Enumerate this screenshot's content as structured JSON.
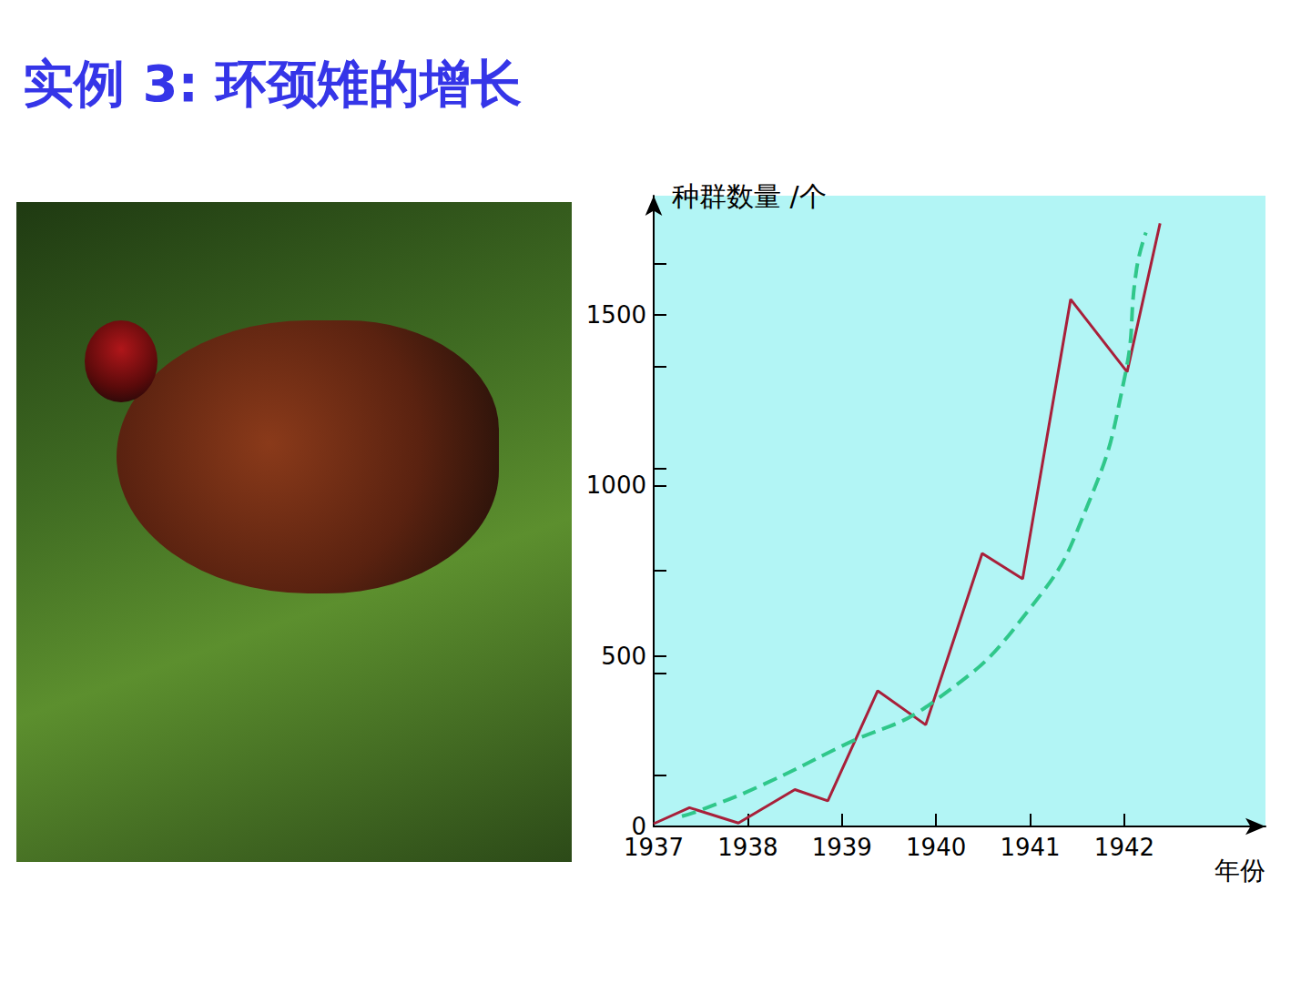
{
  "chart_data": {
    "type": "line",
    "title": "实例 3: 环颈雉的增长",
    "y_label": "种群数量 /个",
    "x_label": "年份",
    "xlim": [
      1937,
      1943.5
    ],
    "xticks": [
      1937,
      1938,
      1939,
      1940,
      1941,
      1942
    ],
    "ylim": [
      0,
      1850
    ],
    "yticks": [
      0,
      500,
      1000,
      1500
    ],
    "grid": false,
    "series": [
      {
        "color": "#a8203a",
        "line_style": "solid",
        "marker": "none",
        "x": [
          1937.0,
          1937.38,
          1937.9,
          1938.5,
          1938.85,
          1939.38,
          1939.89,
          1940.49,
          1940.92,
          1941.43,
          1942.03,
          1942.38
        ],
        "values": [
          8,
          55,
          10,
          108,
          75,
          398,
          298,
          801,
          726,
          1546,
          1333,
          1769
        ]
      },
      {
        "color": "#2fc78a",
        "line_style": "dashed",
        "marker": "none",
        "x": [
          1937.3,
          1937.5,
          1938.1,
          1939.0,
          1940.0,
          1941.0,
          1941.6,
          1942.0,
          1942.13,
          1942.23
        ],
        "values": [
          30,
          48,
          115,
          236,
          371,
          640,
          935,
          1312,
          1634,
          1742
        ]
      }
    ]
  }
}
